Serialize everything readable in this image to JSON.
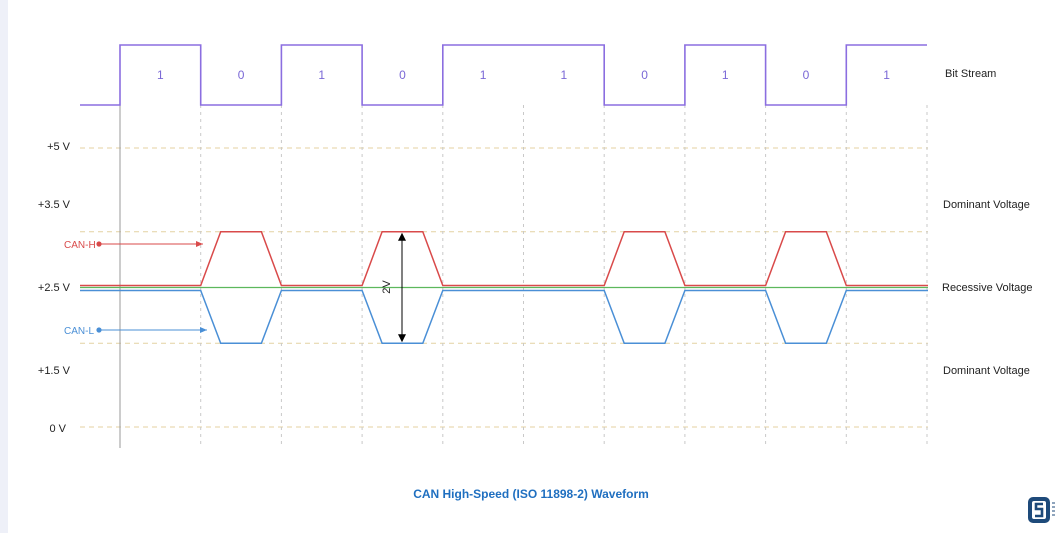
{
  "bit_stream": {
    "label": "Bit Stream",
    "bits": [
      "1",
      "0",
      "1",
      "0",
      "1",
      "1",
      "0",
      "1",
      "0",
      "1"
    ]
  },
  "voltage_levels": [
    {
      "label": "+5 V",
      "value": 5
    },
    {
      "label": "+3.5 V",
      "value": 3.5
    },
    {
      "label": "+2.5 V",
      "value": 2.5
    },
    {
      "label": "+1.5 V",
      "value": 1.5
    },
    {
      "label": "0 V",
      "value": 0
    }
  ],
  "right_labels": {
    "dominant_top": "Dominant Voltage",
    "recessive": "Recessive Voltage",
    "dominant_bottom": "Dominant Voltage"
  },
  "signals": {
    "can_h": {
      "label": "CAN-H",
      "color": "#d94a4a"
    },
    "can_l": {
      "label": "CAN-L",
      "color": "#4a8fd6"
    }
  },
  "difference_label": "2V",
  "title": "CAN High-Speed (ISO 11898-2) Waveform",
  "colors": {
    "bit_stream": "#8b6ee0",
    "recessive_line": "#5cb85c",
    "grid": "#e4d2a2",
    "title": "#1f6fc0"
  },
  "logo_icon": "circuitstate-logo-icon"
}
